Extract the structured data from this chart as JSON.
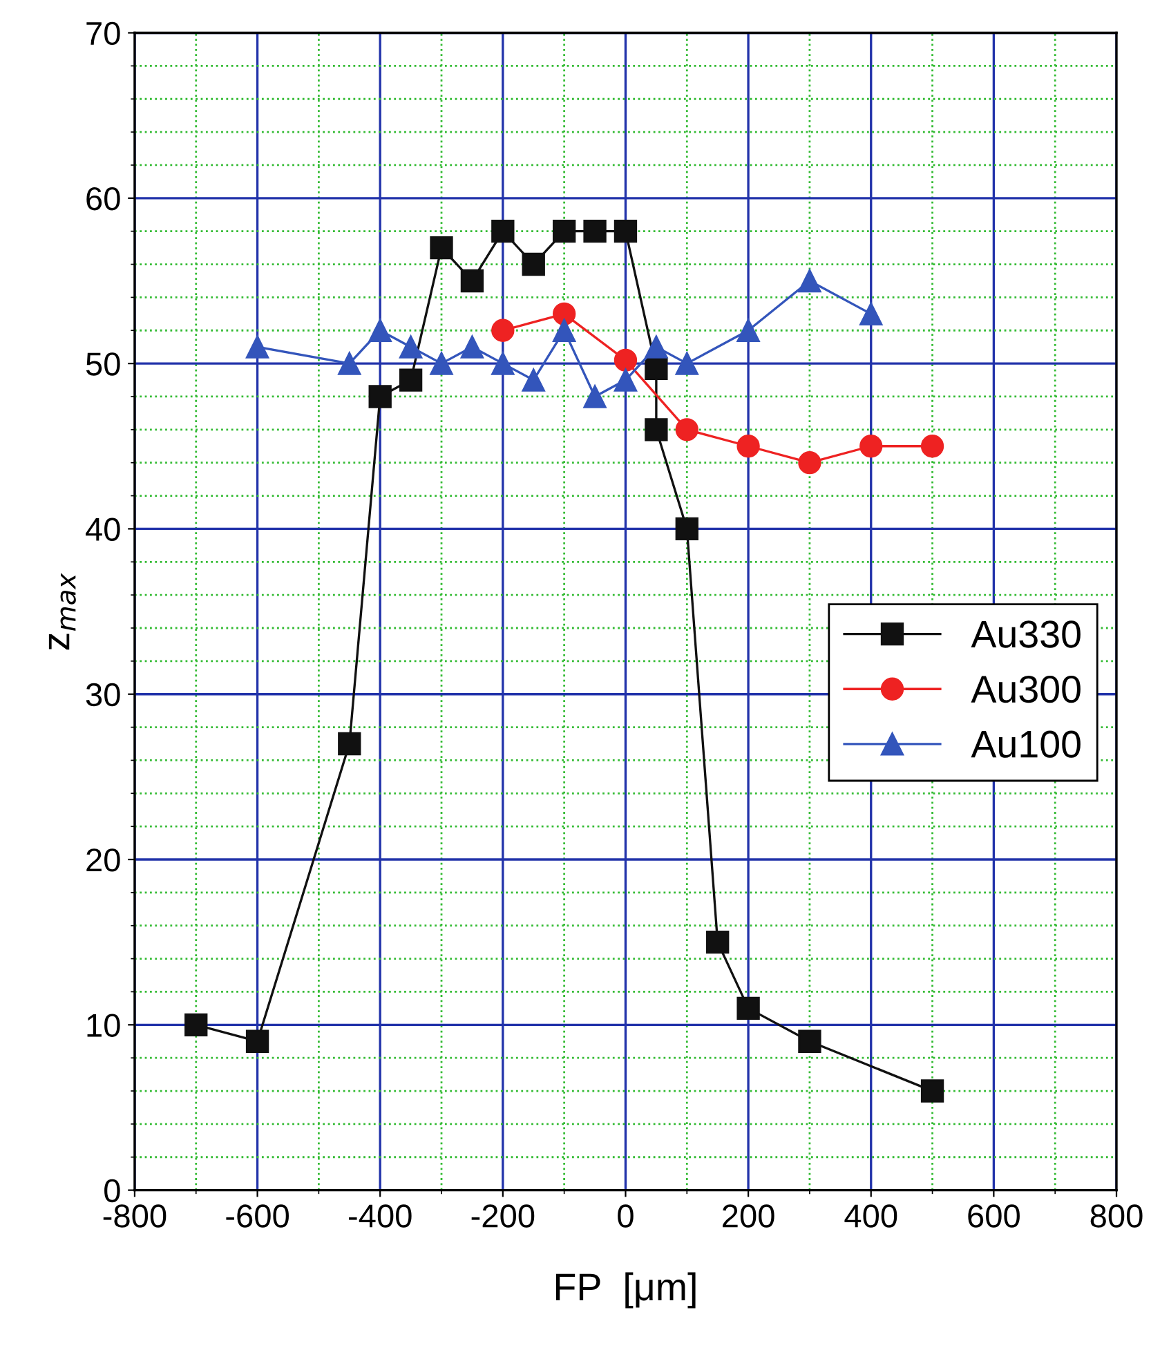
{
  "chart_data": {
    "type": "line",
    "xlabel": "FP  [μm]",
    "ylabel": "z$_{max}$",
    "xlim": [
      -800,
      800
    ],
    "xticks": [
      -800,
      {
        "value": -700,
        "label": null
      },
      -600,
      {
        "value": -500,
        "label": null
      },
      -400,
      {
        "value": -300,
        "label": null
      },
      -200,
      {
        "value": -100,
        "label": null
      },
      0,
      {
        "value": 100,
        "label": null
      },
      200,
      {
        "value": 300,
        "label": null
      },
      400,
      {
        "value": 500,
        "label": null
      },
      600,
      {
        "value": 700,
        "label": null
      },
      800
    ],
    "ylim": [
      0,
      70
    ],
    "yticks": [
      0,
      {
        "value": 2,
        "label": null
      },
      {
        "value": 4,
        "label": null
      },
      {
        "value": 6,
        "label": null
      },
      {
        "value": 8,
        "label": null
      },
      10,
      {
        "value": 12,
        "label": null
      },
      {
        "value": 14,
        "label": null
      },
      {
        "value": 16,
        "label": null
      },
      {
        "value": 18,
        "label": null
      },
      20,
      {
        "value": 22,
        "label": null
      },
      {
        "value": 24,
        "label": null
      },
      {
        "value": 26,
        "label": null
      },
      {
        "value": 28,
        "label": null
      },
      30,
      {
        "value": 32,
        "label": null
      },
      {
        "value": 34,
        "label": null
      },
      {
        "value": 36,
        "label": null
      },
      {
        "value": 38,
        "label": null
      },
      40,
      {
        "value": 42,
        "label": null
      },
      {
        "value": 44,
        "label": null
      },
      {
        "value": 46,
        "label": null
      },
      {
        "value": 48,
        "label": null
      },
      50,
      {
        "value": 52,
        "label": null
      },
      {
        "value": 54,
        "label": null
      },
      {
        "value": 56,
        "label": null
      },
      {
        "value": 58,
        "label": null
      },
      60,
      {
        "value": 62,
        "label": null
      },
      {
        "value": 64,
        "label": null
      },
      {
        "value": 66,
        "label": null
      },
      {
        "value": 68,
        "label": null
      },
      70
    ],
    "grid": true,
    "legend": "right",
    "series": [
      {
        "name": "Au330",
        "color": "#111111",
        "marker": "square",
        "x": [
          -700,
          -600,
          -450,
          -400,
          -350,
          -300,
          -250,
          -200,
          -150,
          -100,
          -50,
          0,
          50,
          50,
          100,
          150,
          200,
          300,
          500
        ],
        "values": [
          10,
          9,
          27,
          48,
          49,
          57,
          55,
          58,
          56,
          58,
          58,
          58,
          49.7,
          46,
          40,
          15,
          11,
          9,
          6
        ]
      },
      {
        "name": "Au300",
        "color": "#ee2222",
        "marker": "circle",
        "x": [
          -200,
          -100,
          0,
          100,
          200,
          300,
          400,
          500
        ],
        "values": [
          52,
          53,
          50.2,
          46,
          45,
          44,
          45,
          45
        ]
      },
      {
        "name": "Au100",
        "color": "#3355bb",
        "marker": "triangle",
        "x": [
          -600,
          -450,
          -400,
          -350,
          -300,
          -250,
          -200,
          -150,
          -100,
          -50,
          0,
          50,
          100,
          200,
          300,
          400
        ],
        "values": [
          51,
          50,
          52,
          51,
          50,
          51,
          50,
          49,
          52,
          48,
          49,
          51,
          50,
          52,
          55,
          53
        ]
      }
    ]
  }
}
